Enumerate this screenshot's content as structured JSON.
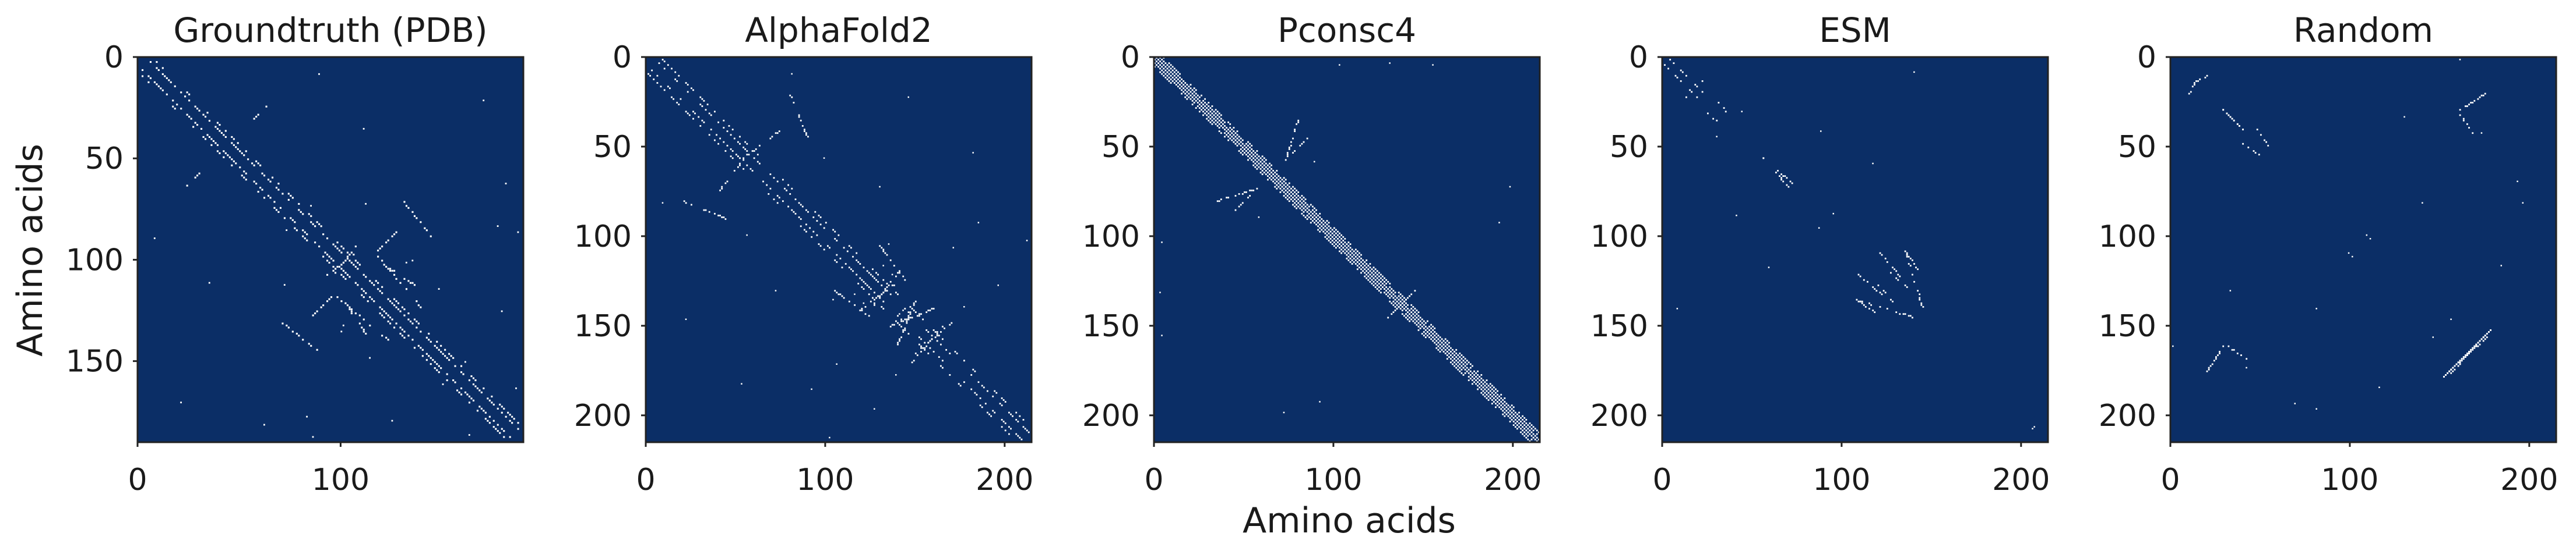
{
  "figure": {
    "x_axis_label": "Amino acids",
    "y_axis_label": "Amino acids"
  },
  "colors": {
    "background": "#0b2e66",
    "contact": "#ffffff"
  },
  "chart_data": [
    {
      "type": "heatmap",
      "title": "Groundtruth (PDB)",
      "length": 190,
      "xlim": [
        0,
        190
      ],
      "ylim": [
        190,
        0
      ],
      "xticks": [
        0,
        100
      ],
      "xtick_labels": [
        "0",
        "100"
      ],
      "yticks": [
        0,
        50,
        100,
        150
      ],
      "ytick_labels": [
        "0",
        "50",
        "100",
        "150"
      ],
      "grid": false,
      "pattern": {
        "diag_bands": [
          [
            0,
            4,
            190,
            0.55
          ],
          [
            0,
            7,
            190,
            0.35
          ]
        ],
        "segments": [
          [
            85,
            128,
            95,
            118,
            0.55
          ],
          [
            118,
            98,
            140,
            124,
            0.55
          ],
          [
            95,
            108,
            108,
            92,
            0.55
          ],
          [
            57,
            30,
            63,
            24,
            0.55
          ],
          [
            104,
            124,
            112,
            136,
            0.55
          ],
          [
            70,
            130,
            88,
            144,
            0.55
          ]
        ],
        "scatter": [
          [
            0,
            190,
            14
          ]
        ]
      }
    },
    {
      "type": "heatmap",
      "title": "AlphaFold2",
      "length": 215,
      "xlim": [
        0,
        215
      ],
      "ylim": [
        215,
        0
      ],
      "xticks": [
        0,
        100,
        200
      ],
      "xtick_labels": [
        "0",
        "100",
        "200"
      ],
      "yticks": [
        0,
        50,
        100,
        150,
        200
      ],
      "ytick_labels": [
        "0",
        "50",
        "100",
        "150",
        "200"
      ],
      "grid": false,
      "pattern": {
        "diag_bands": [
          [
            0,
            4,
            215,
            0.45
          ],
          [
            0,
            8,
            215,
            0.3
          ]
        ],
        "segments": [
          [
            120,
            140,
            140,
            125,
            0.5
          ],
          [
            135,
            150,
            160,
            140,
            0.5
          ],
          [
            105,
            130,
            125,
            145,
            0.45
          ],
          [
            150,
            165,
            170,
            148,
            0.45
          ],
          [
            40,
            75,
            55,
            55,
            0.4
          ],
          [
            80,
            20,
            90,
            45,
            0.4
          ]
        ],
        "scatter": [
          [
            0,
            215,
            14
          ]
        ]
      }
    },
    {
      "type": "heatmap",
      "title": "Pconsc4",
      "length": 215,
      "xlim": [
        0,
        215
      ],
      "ylim": [
        215,
        0
      ],
      "xticks": [
        0,
        100,
        200
      ],
      "xtick_labels": [
        "0",
        "100",
        "200"
      ],
      "yticks": [
        0,
        50,
        100,
        150,
        200
      ],
      "ytick_labels": [
        "0",
        "50",
        "100",
        "150",
        "200"
      ],
      "grid": false,
      "pattern": {
        "diag_bands": [
          [
            0,
            1,
            215,
            1.0
          ],
          [
            0,
            3,
            215,
            0.95
          ],
          [
            0,
            5,
            215,
            0.6
          ]
        ],
        "segments": [
          [
            130,
            145,
            140,
            135,
            0.9
          ],
          [
            75,
            55,
            85,
            45,
            0.6
          ],
          [
            35,
            80,
            60,
            72,
            0.5
          ]
        ],
        "scatter": [
          [
            0,
            215,
            6
          ]
        ]
      }
    },
    {
      "type": "heatmap",
      "title": "ESM",
      "length": 215,
      "xlim": [
        0,
        215
      ],
      "ylim": [
        215,
        0
      ],
      "xticks": [
        0,
        100,
        200
      ],
      "xtick_labels": [
        "0",
        "100",
        "200"
      ],
      "yticks": [
        0,
        50,
        100,
        150,
        200
      ],
      "ytick_labels": [
        "0",
        "50",
        "100",
        "150",
        "200"
      ],
      "grid": false,
      "pattern": {
        "diag_bands": [
          [
            0,
            3,
            20,
            0.6
          ]
        ],
        "segments": [
          [
            55,
            55,
            70,
            72,
            0.55
          ],
          [
            118,
            105,
            132,
            122,
            0.5
          ],
          [
            108,
            135,
            118,
            142,
            0.5
          ],
          [
            125,
            118,
            138,
            130,
            0.45
          ],
          [
            135,
            108,
            145,
            140,
            0.45
          ],
          [
            20,
            10,
            35,
            30,
            0.3
          ]
        ],
        "scatter": [
          [
            0,
            215,
            6
          ]
        ]
      }
    },
    {
      "type": "heatmap",
      "title": "Random",
      "length": 215,
      "xlim": [
        0,
        215
      ],
      "ylim": [
        215,
        0
      ],
      "xticks": [
        0,
        100,
        200
      ],
      "xtick_labels": [
        "0",
        "100",
        "200"
      ],
      "yticks": [
        0,
        50,
        100,
        150,
        200
      ],
      "ytick_labels": [
        "0",
        "50",
        "100",
        "150",
        "200"
      ],
      "grid": false,
      "pattern": {
        "diag_bands": [],
        "segments": [
          [
            152,
            178,
            178,
            152,
            1.0
          ],
          [
            155,
            175,
            176,
            156,
            0.8
          ],
          [
            160,
            30,
            175,
            20,
            0.55
          ],
          [
            30,
            160,
            42,
            168,
            0.55
          ],
          [
            28,
            28,
            40,
            40,
            0.5
          ],
          [
            48,
            40,
            55,
            50,
            0.45
          ],
          [
            10,
            15,
            20,
            10,
            0.45
          ]
        ],
        "scatter": [
          [
            0,
            215,
            10
          ]
        ]
      }
    }
  ]
}
